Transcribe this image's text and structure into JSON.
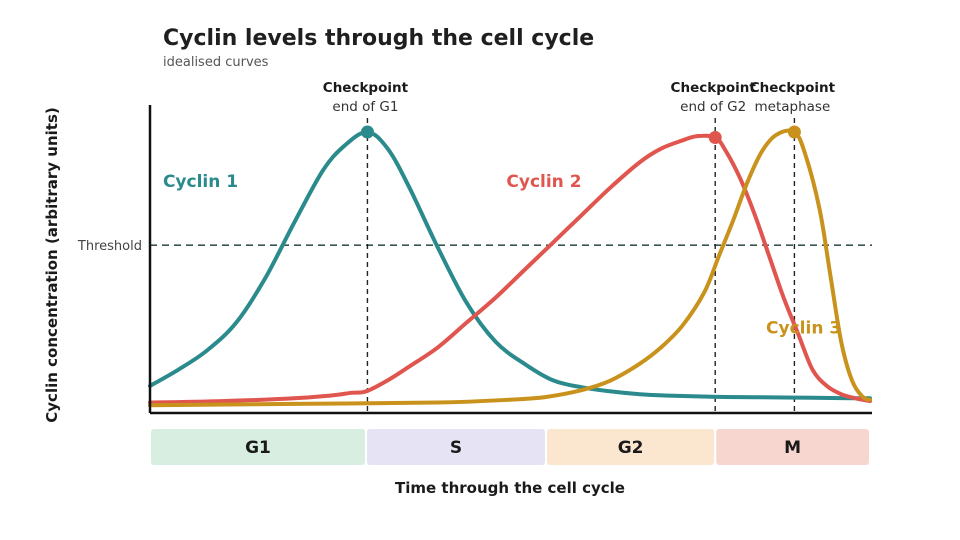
{
  "chart_data": {
    "type": "line",
    "title": "Cyclin levels through the cell cycle",
    "subtitle": "idealised curves",
    "xlabel": "Time through the cell cycle",
    "ylabel": "Cyclin concentration (arbitrary units)",
    "xlim": [
      0,
      100
    ],
    "ylim": [
      0,
      100
    ],
    "threshold": {
      "label": "Threshold",
      "value": 59
    },
    "phases": [
      {
        "label": "G1",
        "start": 0,
        "end": 30,
        "color": "#d8eee0"
      },
      {
        "label": "S",
        "start": 30,
        "end": 55,
        "color": "#e6e4f4"
      },
      {
        "label": "G2",
        "start": 55,
        "end": 78.5,
        "color": "#fbe6cf"
      },
      {
        "label": "M",
        "start": 78.5,
        "end": 100,
        "color": "#f8d6d0"
      }
    ],
    "checkpoints": [
      {
        "title": "Checkpoint",
        "subtitle": "end of G1",
        "x": 30.2,
        "y": 100,
        "color": "#2a8a8c"
      },
      {
        "title": "Checkpoint",
        "subtitle": "end of G2",
        "x": 78.5,
        "y": 98,
        "color": "#e0564e"
      },
      {
        "title": "Checkpoint",
        "subtitle": "metaphase",
        "x": 89.5,
        "y": 100,
        "color": "#c9921c"
      }
    ],
    "series": [
      {
        "name": "Cyclin 1",
        "color": "#2a8a8c",
        "x": [
          0,
          4,
          8,
          12,
          16,
          20,
          24,
          27,
          30.2,
          33,
          36,
          40,
          44,
          48,
          52,
          56,
          60,
          64,
          68,
          72,
          76,
          80,
          84,
          88,
          92,
          96,
          100
        ],
        "y": [
          8,
          14,
          21,
          31,
          47,
          67,
          86,
          95,
          100,
          94,
          80,
          58,
          38,
          24,
          16,
          10,
          7.5,
          6,
          5,
          4.5,
          4.2,
          4,
          3.9,
          3.8,
          3.7,
          3.6,
          3.5
        ]
      },
      {
        "name": "Cyclin 2",
        "color": "#e0564e",
        "x": [
          0,
          10,
          20,
          25,
          28,
          30,
          33,
          36,
          40,
          44,
          48,
          52,
          56,
          60,
          64,
          68,
          71,
          74,
          76,
          78.5,
          80,
          82,
          84,
          86,
          88,
          90,
          92,
          94,
          96,
          98,
          100
        ],
        "y": [
          2,
          2.5,
          3.5,
          4.5,
          5.5,
          6,
          10,
          15,
          22,
          31,
          40,
          50,
          60,
          70,
          80,
          89,
          94,
          97,
          98.5,
          98,
          93,
          83,
          70,
          55,
          40,
          27,
          14,
          8,
          5,
          3.5,
          2.5
        ]
      },
      {
        "name": "Cyclin 3",
        "color": "#c9921c",
        "x": [
          0,
          20,
          40,
          50,
          55,
          60,
          64,
          68,
          71,
          74,
          77,
          79,
          81,
          83,
          85,
          87,
          89.5,
          91,
          93,
          94.5,
          96,
          97.5,
          99,
          100
        ],
        "y": [
          1,
          1.5,
          2,
          3,
          4,
          6.5,
          10,
          16,
          22,
          30,
          42,
          55,
          68,
          82,
          93,
          99,
          100,
          92,
          72,
          48,
          24,
          10,
          4,
          3
        ]
      }
    ]
  }
}
